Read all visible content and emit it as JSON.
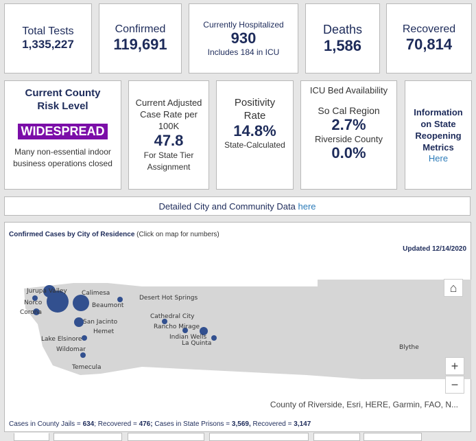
{
  "stats": {
    "total_tests": {
      "label": "Total Tests",
      "value": "1,335,227"
    },
    "confirmed": {
      "label": "Confirmed",
      "value": "119,691"
    },
    "hospitalized": {
      "label": "Currently Hospitalized",
      "value": "930",
      "note": "Includes 184 in ICU"
    },
    "deaths": {
      "label": "Deaths",
      "value": "1,586"
    },
    "recovered": {
      "label": "Recovered",
      "value": "70,814"
    }
  },
  "risk": {
    "title": "Current County Risk Level",
    "badge": "WIDESPREAD",
    "badge_color": "#7b0ea8",
    "desc": "Many non-essential indoor business operations closed"
  },
  "case_rate": {
    "label": "Current Adjusted Case Rate per 100K",
    "value": "47.8",
    "note": "For State Tier Assignment"
  },
  "positivity": {
    "label": "Positivity Rate",
    "value": "14.8%",
    "note": "State-Calculated"
  },
  "icu": {
    "title": "ICU Bed Availability",
    "region_label": "So Cal Region",
    "region_value": "2.7%",
    "county_label": "Riverside County",
    "county_value": "0.0%"
  },
  "reopening": {
    "label": "Information on State Reopening Metrics",
    "link": "Here"
  },
  "banner": {
    "text": "Detailed City and Community Data",
    "link": "here"
  },
  "map": {
    "title": "Confirmed Cases by City of Residence",
    "subtitle": "(Click on map for numbers)",
    "updated": "Updated 12/14/2020",
    "attribution": "County of Riverside, Esri, HERE, Garmin, FAO, N...",
    "cities": [
      "Jurupa Valley",
      "Norco",
      "Corona",
      "Calimesa",
      "Beaumont",
      "San Jacinto",
      "Hemet",
      "Lake Elsinore",
      "Wildomar",
      "Temecula",
      "Desert Hot Springs",
      "Cathedral City",
      "Rancho Mirage",
      "Indian Wells",
      "La Quinta",
      "Blythe"
    ],
    "zoom_in": "+",
    "zoom_out": "−"
  },
  "footer": {
    "jails_label": "Cases in County Jails = ",
    "jails": "634",
    "rec1_label": "; Recovered = ",
    "rec1": "476;",
    "prisons_label": " Cases in State Prisons = ",
    "prisons": "3,569,",
    "rec2_label": " Recovered = ",
    "rec2": "3,147"
  }
}
